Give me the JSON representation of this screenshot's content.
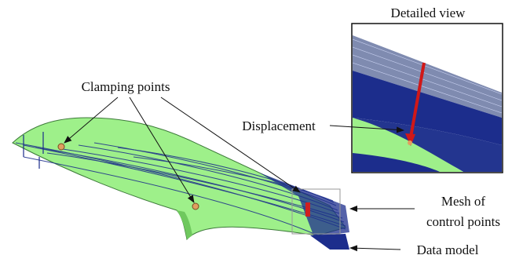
{
  "labels": {
    "detailed_view": "Detailed view",
    "clamping_points": "Clamping points",
    "displacement": "Displacement",
    "mesh_of_control_points": [
      "Mesh of",
      "control points"
    ],
    "data_model": "Data model"
  }
}
